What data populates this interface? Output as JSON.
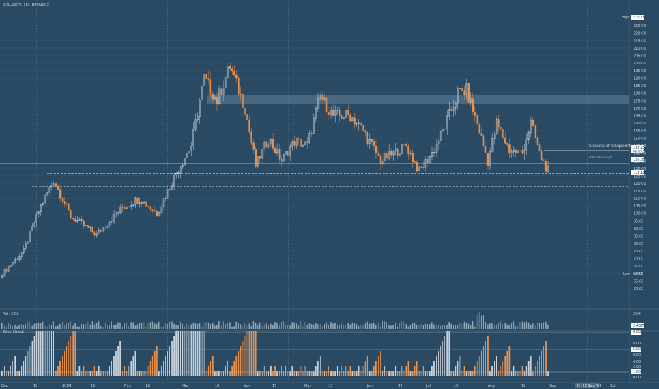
{
  "header": {
    "symbol": "SOLUSDT, 1D, BINANCE"
  },
  "colors": {
    "background": "#2a4a63",
    "candle_up": "#c7d2dc",
    "candle_down": "#e8924f",
    "text": "#c8d3dc",
    "zone": "#5d7d96",
    "label_bg": "#ffffff",
    "label_fg": "#1f3a50"
  },
  "chart_data": [
    {
      "type": "candlestick",
      "symbol": "SOLUSDT",
      "interval": "1D",
      "exchange": "BINANCE",
      "ylim": [
        45,
        225
      ],
      "y_ticks": [
        50,
        55,
        60,
        65,
        70,
        75,
        80,
        85,
        90,
        95,
        100,
        105,
        110,
        115,
        120,
        125,
        130,
        135,
        140,
        145,
        150,
        155,
        160,
        165,
        170,
        175,
        180,
        185,
        190,
        195,
        200,
        205,
        210,
        215,
        220,
        225
      ],
      "x_tick_labels": [
        "Dec",
        "18",
        "2024",
        "15",
        "Feb",
        "12",
        "Mar",
        "18",
        "Apr",
        "15",
        "May",
        "13",
        "Jun",
        "17",
        "Jul",
        "15",
        "Aug",
        "12",
        "Sep",
        "Oct"
      ],
      "anchors": [
        {
          "day": 0,
          "value": 60
        },
        {
          "day": 10,
          "value": 75
        },
        {
          "day": 18,
          "value": 105
        },
        {
          "day": 24,
          "value": 122
        },
        {
          "day": 32,
          "value": 98
        },
        {
          "day": 44,
          "value": 86
        },
        {
          "day": 56,
          "value": 104
        },
        {
          "day": 64,
          "value": 110
        },
        {
          "day": 72,
          "value": 100
        },
        {
          "day": 82,
          "value": 130
        },
        {
          "day": 88,
          "value": 145
        },
        {
          "day": 94,
          "value": 190
        },
        {
          "day": 100,
          "value": 175
        },
        {
          "day": 106,
          "value": 198
        },
        {
          "day": 113,
          "value": 170
        },
        {
          "day": 118,
          "value": 132
        },
        {
          "day": 124,
          "value": 150
        },
        {
          "day": 130,
          "value": 135
        },
        {
          "day": 136,
          "value": 148
        },
        {
          "day": 142,
          "value": 145
        },
        {
          "day": 148,
          "value": 178
        },
        {
          "day": 154,
          "value": 165
        },
        {
          "day": 162,
          "value": 165
        },
        {
          "day": 168,
          "value": 155
        },
        {
          "day": 176,
          "value": 135
        },
        {
          "day": 182,
          "value": 140
        },
        {
          "day": 188,
          "value": 145
        },
        {
          "day": 194,
          "value": 128
        },
        {
          "day": 200,
          "value": 140
        },
        {
          "day": 206,
          "value": 158
        },
        {
          "day": 212,
          "value": 180
        },
        {
          "day": 216,
          "value": 182
        },
        {
          "day": 222,
          "value": 155
        },
        {
          "day": 226,
          "value": 135
        },
        {
          "day": 230,
          "value": 160
        },
        {
          "day": 236,
          "value": 142
        },
        {
          "day": 242,
          "value": 140
        },
        {
          "day": 246,
          "value": 160
        },
        {
          "day": 250,
          "value": 140
        },
        {
          "day": 254,
          "value": 128
        }
      ],
      "price_levels": [
        {
          "label": "High",
          "value": "210.18"
        },
        {
          "label": "",
          "value": "133.15"
        },
        {
          "label": "",
          "value": "08:45:58"
        },
        {
          "label": "",
          "value": "126.38"
        },
        {
          "label": "",
          "value": "118.10"
        },
        {
          "label": "Low",
          "value": "58.60"
        }
      ],
      "annotations": [
        {
          "text": "Solana Breakpoint"
        },
        {
          "text": "2023 Year High"
        }
      ],
      "cursor_date": "Fri 20 Sep '24"
    },
    {
      "type": "bar",
      "title": "Vol · SOL",
      "y_ticks": [
        "25M"
      ],
      "last_value_label": "2.437M"
    },
    {
      "type": "bar",
      "title": "Price Streak",
      "y_ticks": [
        "8.00",
        "6.00",
        "4.00",
        "2.00",
        "0.00"
      ],
      "levels": [
        "9.00",
        "5.00",
        "1.00"
      ]
    }
  ]
}
